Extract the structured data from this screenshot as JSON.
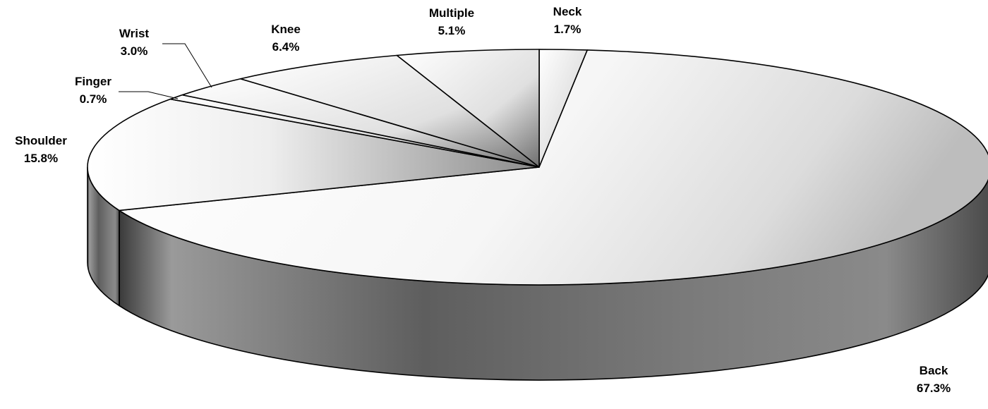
{
  "chart_data": {
    "type": "pie",
    "title": "",
    "three_d": true,
    "slices": [
      {
        "label": "Neck",
        "value": 1.7,
        "value_label": "1.7%"
      },
      {
        "label": "Back",
        "value": 67.3,
        "value_label": "67.3%"
      },
      {
        "label": "Shoulder",
        "value": 15.8,
        "value_label": "15.8%"
      },
      {
        "label": "Finger",
        "value": 0.7,
        "value_label": "0.7%"
      },
      {
        "label": "Wrist",
        "value": 3.0,
        "value_label": "3.0%"
      },
      {
        "label": "Knee",
        "value": 6.4,
        "value_label": "6.4%"
      },
      {
        "label": "Multiple",
        "value": 5.1,
        "value_label": "5.1%"
      }
    ]
  }
}
